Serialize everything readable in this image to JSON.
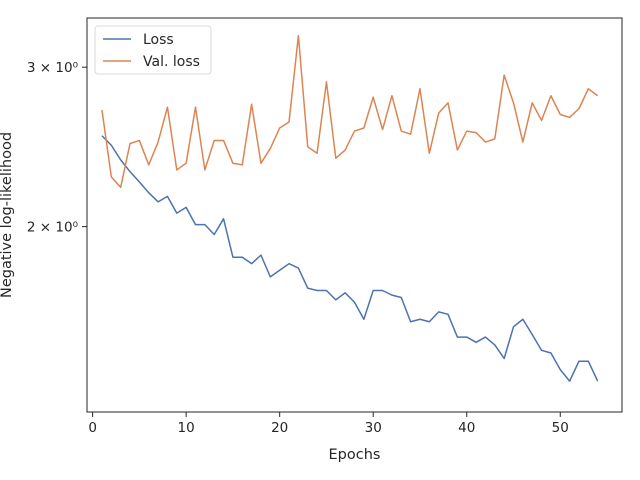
{
  "chart_data": {
    "type": "line",
    "xlabel": "Epochs",
    "ylabel": "Negative log-likelihood",
    "xlim": [
      -0.6,
      56.6
    ],
    "ylim": [
      1.248,
      3.4
    ],
    "y_scale": "log",
    "grid": false,
    "legend_placement": "top-left",
    "x_ticks": [
      0,
      10,
      20,
      30,
      40,
      50
    ],
    "y_ticks": [
      {
        "value": 3.0,
        "label": "3 × 10⁰"
      },
      {
        "value": 2.0,
        "label": "2 × 10⁰"
      }
    ],
    "x": [
      1,
      2,
      3,
      4,
      5,
      6,
      7,
      8,
      9,
      10,
      11,
      12,
      13,
      14,
      15,
      16,
      17,
      18,
      19,
      20,
      21,
      22,
      23,
      24,
      25,
      26,
      27,
      28,
      29,
      30,
      31,
      32,
      33,
      34,
      35,
      36,
      37,
      38,
      39,
      40,
      41,
      42,
      43,
      44,
      45,
      46,
      47,
      48,
      49,
      50,
      51,
      52,
      53,
      54
    ],
    "series": [
      {
        "name": "Loss",
        "color": "#4c72b0",
        "values": [
          2.52,
          2.46,
          2.37,
          2.3,
          2.24,
          2.18,
          2.13,
          2.16,
          2.07,
          2.1,
          2.01,
          2.01,
          1.96,
          2.04,
          1.85,
          1.85,
          1.82,
          1.86,
          1.76,
          1.79,
          1.82,
          1.8,
          1.71,
          1.7,
          1.7,
          1.66,
          1.69,
          1.65,
          1.58,
          1.7,
          1.7,
          1.68,
          1.67,
          1.57,
          1.58,
          1.57,
          1.61,
          1.6,
          1.51,
          1.51,
          1.49,
          1.51,
          1.48,
          1.43,
          1.55,
          1.58,
          1.52,
          1.46,
          1.45,
          1.39,
          1.35,
          1.42,
          1.42,
          1.35
        ]
      },
      {
        "name": "Val. loss",
        "color": "#dd8452",
        "values": [
          2.69,
          2.27,
          2.21,
          2.47,
          2.49,
          2.34,
          2.48,
          2.71,
          2.31,
          2.35,
          2.71,
          2.31,
          2.49,
          2.49,
          2.35,
          2.34,
          2.73,
          2.35,
          2.44,
          2.57,
          2.61,
          3.25,
          2.45,
          2.41,
          2.89,
          2.38,
          2.43,
          2.55,
          2.57,
          2.78,
          2.56,
          2.79,
          2.55,
          2.53,
          2.84,
          2.41,
          2.67,
          2.74,
          2.43,
          2.55,
          2.54,
          2.48,
          2.5,
          2.94,
          2.74,
          2.48,
          2.74,
          2.62,
          2.79,
          2.66,
          2.64,
          2.7,
          2.84,
          2.79
        ]
      }
    ]
  }
}
